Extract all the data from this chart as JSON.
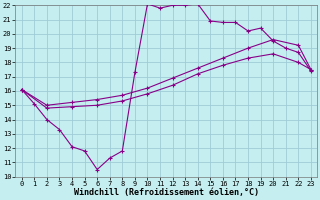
{
  "xlabel": "Windchill (Refroidissement éolien,°C)",
  "xlim": [
    -0.5,
    23.5
  ],
  "ylim": [
    10,
    22
  ],
  "xticks": [
    0,
    1,
    2,
    3,
    4,
    5,
    6,
    7,
    8,
    9,
    10,
    11,
    12,
    13,
    14,
    15,
    16,
    17,
    18,
    19,
    20,
    21,
    22,
    23
  ],
  "yticks": [
    10,
    11,
    12,
    13,
    14,
    15,
    16,
    17,
    18,
    19,
    20,
    21,
    22
  ],
  "bg_color": "#c5eef0",
  "grid_color": "#9fccd8",
  "line_color": "#880088",
  "curve1_x": [
    0,
    1,
    2,
    3,
    4,
    5,
    6,
    7,
    8,
    9,
    10,
    11,
    12,
    13,
    14,
    15,
    16,
    17,
    18,
    19,
    20,
    21,
    22,
    23
  ],
  "curve1_y": [
    16.1,
    15.1,
    14.0,
    13.3,
    12.1,
    11.8,
    10.5,
    11.3,
    11.8,
    17.3,
    22.1,
    21.8,
    22.0,
    22.0,
    22.1,
    20.9,
    20.8,
    20.8,
    20.2,
    20.4,
    19.5,
    19.0,
    18.7,
    17.4
  ],
  "curve2_x": [
    0,
    2,
    4,
    6,
    8,
    10,
    12,
    14,
    16,
    18,
    20,
    22,
    23
  ],
  "curve2_y": [
    16.1,
    15.0,
    15.2,
    15.4,
    15.7,
    16.2,
    16.9,
    17.6,
    18.3,
    19.0,
    19.6,
    19.2,
    17.5
  ],
  "curve3_x": [
    0,
    2,
    4,
    6,
    8,
    10,
    12,
    14,
    16,
    18,
    20,
    22,
    23
  ],
  "curve3_y": [
    16.1,
    14.8,
    14.9,
    15.0,
    15.3,
    15.8,
    16.4,
    17.2,
    17.8,
    18.3,
    18.6,
    18.0,
    17.5
  ],
  "font_family": "monospace",
  "tick_fontsize": 5,
  "label_fontsize": 6
}
